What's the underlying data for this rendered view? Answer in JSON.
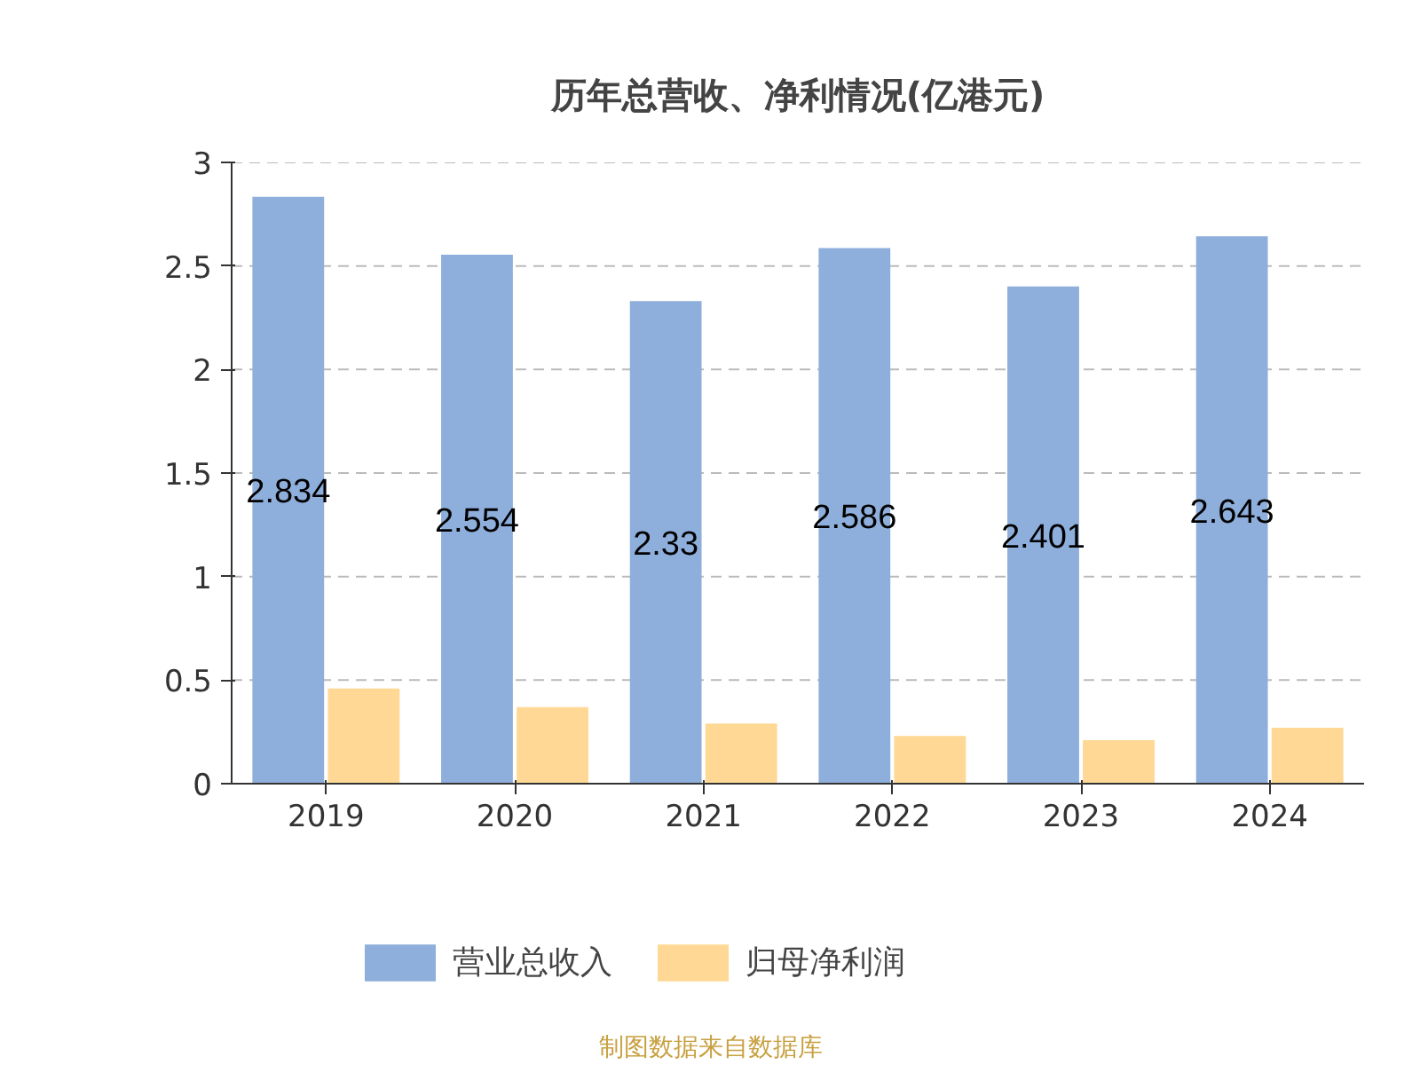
{
  "chart_data": {
    "type": "bar",
    "title": "历年总营收、净利情况(亿港元)",
    "categories": [
      "2019",
      "2020",
      "2021",
      "2022",
      "2023",
      "2024"
    ],
    "series": [
      {
        "name": "营业总收入",
        "color": "#8eaedb",
        "values": [
          2.834,
          2.554,
          2.33,
          2.586,
          2.401,
          2.643
        ],
        "value_labels": [
          "2.834",
          "2.554",
          "2.33",
          "2.586",
          "2.401",
          "2.643"
        ]
      },
      {
        "name": "归母净利润",
        "color": "#fed894",
        "values": [
          0.46,
          0.37,
          0.29,
          0.23,
          0.21,
          0.27
        ]
      }
    ],
    "ylim": [
      0,
      3
    ],
    "yticks": [
      0,
      {
        "value": 0.5,
        "label": "0.5"
      },
      1,
      {
        "value": 1.5,
        "label": "1.5"
      },
      2,
      {
        "value": 2.5,
        "label": "2.5"
      },
      3
    ],
    "grid": "y",
    "legend": "bottom",
    "annotations": [
      "制图数据来自数据库"
    ]
  }
}
